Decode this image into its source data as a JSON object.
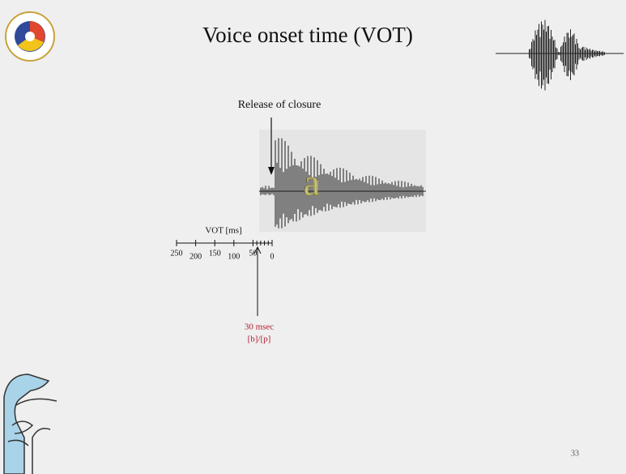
{
  "slide": {
    "title": "Voice onset time (VOT)",
    "annotation": "Release of closure",
    "vowel": "a",
    "axis": {
      "label": "VOT [ms]",
      "ticks": [
        "250",
        "200",
        "150",
        "100",
        "50",
        "0"
      ]
    },
    "marker": {
      "value": "30 msec",
      "contrast": "[b]/[p]"
    },
    "page_number": "33"
  }
}
